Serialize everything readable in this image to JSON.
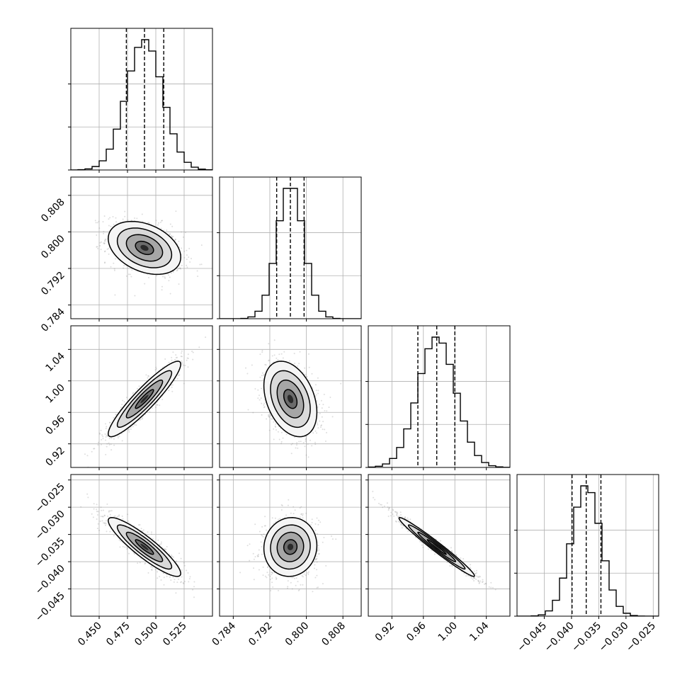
{
  "chart_data": {
    "type": "corner",
    "grid": true,
    "parameters": [
      {
        "median": 0.49,
        "q16": 0.474,
        "q84": 0.507,
        "sigma": 0.016,
        "range": [
          0.425,
          0.55
        ],
        "ticks": [
          0.45,
          0.475,
          0.5,
          0.525
        ],
        "tick_labels": [
          "0.450",
          "0.475",
          "0.500",
          "0.525"
        ]
      },
      {
        "median": 0.7965,
        "q16": 0.7935,
        "q84": 0.7995,
        "sigma": 0.0029,
        "range": [
          0.781,
          0.812
        ],
        "ticks": [
          0.784,
          0.792,
          0.8,
          0.808
        ],
        "tick_labels": [
          "0.784",
          "0.792",
          "0.800",
          "0.808"
        ]
      },
      {
        "median": 0.977,
        "q16": 0.953,
        "q84": 1.0,
        "sigma": 0.024,
        "range": [
          0.89,
          1.07
        ],
        "ticks": [
          0.92,
          0.96,
          1.0,
          1.04
        ],
        "tick_labels": [
          "0.92",
          "0.96",
          "1.00",
          "1.04"
        ]
      },
      {
        "median": -0.0373,
        "q16": -0.0399,
        "q84": -0.0346,
        "sigma": 0.0027,
        "range": [
          -0.05,
          -0.024
        ],
        "ticks": [
          -0.045,
          -0.04,
          -0.035,
          -0.03,
          -0.025
        ],
        "tick_labels": [
          "−0.045",
          "−0.040",
          "−0.035",
          "−0.030",
          "−0.025"
        ]
      }
    ],
    "histogram_bins": 20,
    "correlations": {
      "1-0": -0.35,
      "2-0": 0.92,
      "2-1": -0.35,
      "3-0": -0.9,
      "3-1": 0.05,
      "3-2": -0.98
    },
    "contour_levels_sigma": [
      0.5,
      1.0,
      1.5,
      2.0
    ],
    "colors": {
      "scatter": "#888888",
      "density": "#000000",
      "line": "#000000",
      "grid": "#b0b0b0"
    }
  }
}
